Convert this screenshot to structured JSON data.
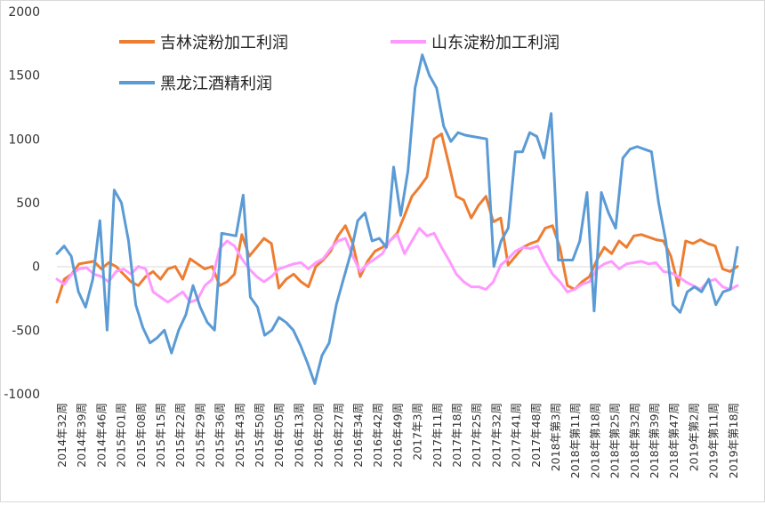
{
  "chart_data": {
    "type": "line",
    "title": "",
    "xlabel": "",
    "ylabel": "",
    "ylim": [
      -1000,
      2000
    ],
    "yticks": [
      -1000,
      -500,
      0,
      500,
      1000,
      1500,
      2000
    ],
    "grid": false,
    "legend_position": "top",
    "x_tick_labels": [
      "2014年32周",
      "2014年39周",
      "2014年46周",
      "2015年01周",
      "2015年08周",
      "2015年15周",
      "2015年22周",
      "2015年29周",
      "2015年36周",
      "2015年43周",
      "2015年50周",
      "2016年05周",
      "2016年13周",
      "2016年20周",
      "2016年27周",
      "2016年34周",
      "2016年42周",
      "2016年49周",
      "2017年3周",
      "2017年11周",
      "2017年18周",
      "2017年25周",
      "2017年32周",
      "2017年41周",
      "2017年48周",
      "2018年第3周",
      "2018年第11周",
      "2018年第18周",
      "2018年第25周",
      "2018年第32周",
      "2018年第39周",
      "2018年第47周",
      "2019年第2周",
      "2019年第11周",
      "2019年第18周"
    ],
    "series": [
      {
        "name": "吉林淀粉加工利润",
        "color": "#ed7d31",
        "values": [
          -280,
          -100,
          -60,
          20,
          30,
          40,
          -20,
          30,
          0,
          -60,
          -120,
          -150,
          -80,
          -40,
          -100,
          -20,
          0,
          -100,
          60,
          20,
          -20,
          0,
          -150,
          -120,
          -60,
          250,
          80,
          150,
          220,
          180,
          -170,
          -100,
          -60,
          -120,
          -160,
          0,
          50,
          120,
          240,
          320,
          180,
          -80,
          40,
          120,
          150,
          200,
          260,
          400,
          550,
          620,
          700,
          1000,
          1040,
          800,
          550,
          520,
          380,
          480,
          550,
          350,
          380,
          10,
          80,
          150,
          180,
          200,
          300,
          320,
          150,
          -150,
          -180,
          -120,
          -80,
          50,
          150,
          100,
          200,
          150,
          240,
          250,
          230,
          210,
          200,
          80,
          -150,
          200,
          180,
          210,
          180,
          160,
          -20,
          -40,
          0
        ]
      },
      {
        "name": "山东淀粉加工利润",
        "color": "#ff99ff",
        "values": [
          -100,
          -140,
          -60,
          -20,
          -10,
          -60,
          -80,
          -120,
          -40,
          -20,
          -60,
          0,
          -20,
          -200,
          -240,
          -280,
          -240,
          -200,
          -280,
          -260,
          -150,
          -100,
          140,
          200,
          160,
          60,
          -20,
          -80,
          -120,
          -80,
          -20,
          0,
          20,
          30,
          -20,
          30,
          60,
          140,
          200,
          220,
          80,
          -40,
          20,
          60,
          100,
          200,
          250,
          100,
          200,
          300,
          240,
          260,
          150,
          50,
          -60,
          -120,
          -160,
          -160,
          -180,
          -120,
          10,
          60,
          120,
          150,
          140,
          160,
          40,
          -60,
          -120,
          -200,
          -180,
          -140,
          -120,
          -20,
          20,
          40,
          -20,
          20,
          30,
          40,
          20,
          30,
          -40,
          -50,
          -80,
          -120,
          -150,
          -180,
          -120,
          -100,
          -160,
          -180,
          -150
        ]
      },
      {
        "name": "黑龙江酒精利润",
        "color": "#5b9bd5",
        "values": [
          100,
          160,
          80,
          -200,
          -320,
          -100,
          360,
          -500,
          600,
          500,
          200,
          -300,
          -480,
          -600,
          -560,
          -500,
          -680,
          -500,
          -380,
          -150,
          -320,
          -440,
          -500,
          260,
          250,
          240,
          560,
          -240,
          -320,
          -540,
          -500,
          -400,
          -440,
          -500,
          -620,
          -760,
          -920,
          -700,
          -600,
          -300,
          -100,
          100,
          360,
          420,
          200,
          220,
          150,
          780,
          400,
          750,
          1400,
          1660,
          1500,
          1400,
          1100,
          980,
          1050,
          1030,
          1020,
          1010,
          1000,
          0,
          200,
          300,
          900,
          900,
          1050,
          1020,
          850,
          1200,
          50,
          50,
          50,
          200,
          580,
          -350,
          580,
          420,
          300,
          850,
          920,
          940,
          920,
          900,
          500,
          200,
          -300,
          -360,
          -200,
          -160,
          -200,
          -100,
          -300,
          -200,
          -180,
          150
        ]
      }
    ]
  }
}
